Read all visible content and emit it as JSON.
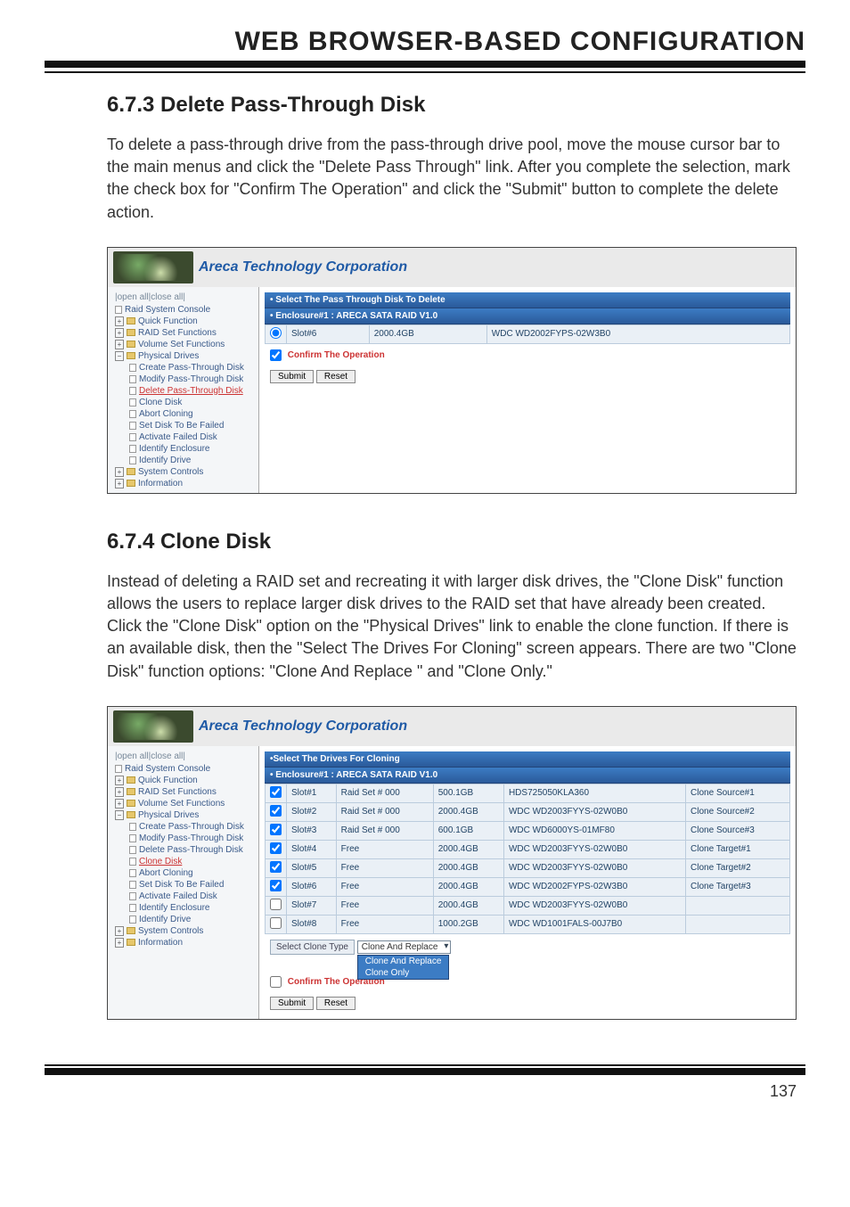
{
  "page_header": "WEB BROWSER-BASED CONFIGURATION",
  "page_number": "137",
  "section1": {
    "heading": "6.7.3 Delete Pass-Through Disk",
    "body": "To delete a pass-through drive from the pass-through drive pool, move the mouse cursor bar to the main menus and click the \"Delete Pass Through\" link. After you complete the selection, mark the check box for \"Confirm The Operation\" and click the \"Submit\" button to complete the delete action."
  },
  "section2": {
    "heading": "6.7.4 Clone Disk",
    "body": "Instead of deleting a RAID set and recreating it with larger disk drives, the \"Clone Disk\" function allows the users to replace larger disk drives to the RAID set that have already been created. Click the \"Clone Disk\" option on the \"Physical Drives\" link to enable the clone function. If there is an available disk, then the \"Select The Drives For Cloning\" screen appears. There are two \"Clone Disk\" function options: \"Clone And Replace \" and \"Clone Only.\""
  },
  "brand_title": "Areca Technology Corporation",
  "sidebar": {
    "open_close": "|open all|close all|",
    "root": "Raid System Console",
    "items": [
      "Quick Function",
      "RAID Set Functions",
      "Volume Set Functions",
      "Physical Drives"
    ],
    "phys_children": [
      "Create Pass-Through Disk",
      "Modify Pass-Through Disk",
      "Delete Pass-Through Disk",
      "Clone Disk",
      "Abort Cloning",
      "Set Disk To Be Failed",
      "Activate Failed Disk",
      "Identify Enclosure",
      "Identify Drive"
    ],
    "tail": [
      "System Controls",
      "Information"
    ]
  },
  "shot1": {
    "bar1": "• Select The Pass Through Disk To Delete",
    "bar2": "• Enclosure#1 : ARECA SATA RAID V1.0",
    "row": {
      "slot": "Slot#6",
      "size": "2000.4GB",
      "model": "WDC WD2002FYPS-02W3B0"
    },
    "confirm": "Confirm The Operation",
    "submit": "Submit",
    "reset": "Reset"
  },
  "shot2": {
    "bar1": "•Select The Drives For Cloning",
    "bar2": "• Enclosure#1 : ARECA SATA RAID V1.0",
    "rows": [
      {
        "chk": true,
        "slot": "Slot#1",
        "set": "Raid Set # 000",
        "size": "500.1GB",
        "model": "HDS725050KLA360",
        "role": "Clone Source#1"
      },
      {
        "chk": true,
        "slot": "Slot#2",
        "set": "Raid Set # 000",
        "size": "2000.4GB",
        "model": "WDC WD2003FYYS-02W0B0",
        "role": "Clone Source#2"
      },
      {
        "chk": true,
        "slot": "Slot#3",
        "set": "Raid Set # 000",
        "size": "600.1GB",
        "model": "WDC WD6000YS-01MF80",
        "role": "Clone Source#3"
      },
      {
        "chk": true,
        "slot": "Slot#4",
        "set": "Free",
        "size": "2000.4GB",
        "model": "WDC WD2003FYYS-02W0B0",
        "role": "Clone Target#1"
      },
      {
        "chk": true,
        "slot": "Slot#5",
        "set": "Free",
        "size": "2000.4GB",
        "model": "WDC WD2003FYYS-02W0B0",
        "role": "Clone Target#2"
      },
      {
        "chk": true,
        "slot": "Slot#6",
        "set": "Free",
        "size": "2000.4GB",
        "model": "WDC WD2002FYPS-02W3B0",
        "role": "Clone Target#3"
      },
      {
        "chk": false,
        "slot": "Slot#7",
        "set": "Free",
        "size": "2000.4GB",
        "model": "WDC WD2003FYYS-02W0B0",
        "role": ""
      },
      {
        "chk": false,
        "slot": "Slot#8",
        "set": "Free",
        "size": "1000.2GB",
        "model": "WDC WD1001FALS-00J7B0",
        "role": ""
      }
    ],
    "clone_type_label": "Select Clone Type",
    "clone_type_value": "Clone And Replace",
    "menu_opts": [
      "Clone And Replace",
      "Clone Only"
    ],
    "confirm": "Confirm The Operation",
    "submit": "Submit",
    "reset": "Reset"
  }
}
